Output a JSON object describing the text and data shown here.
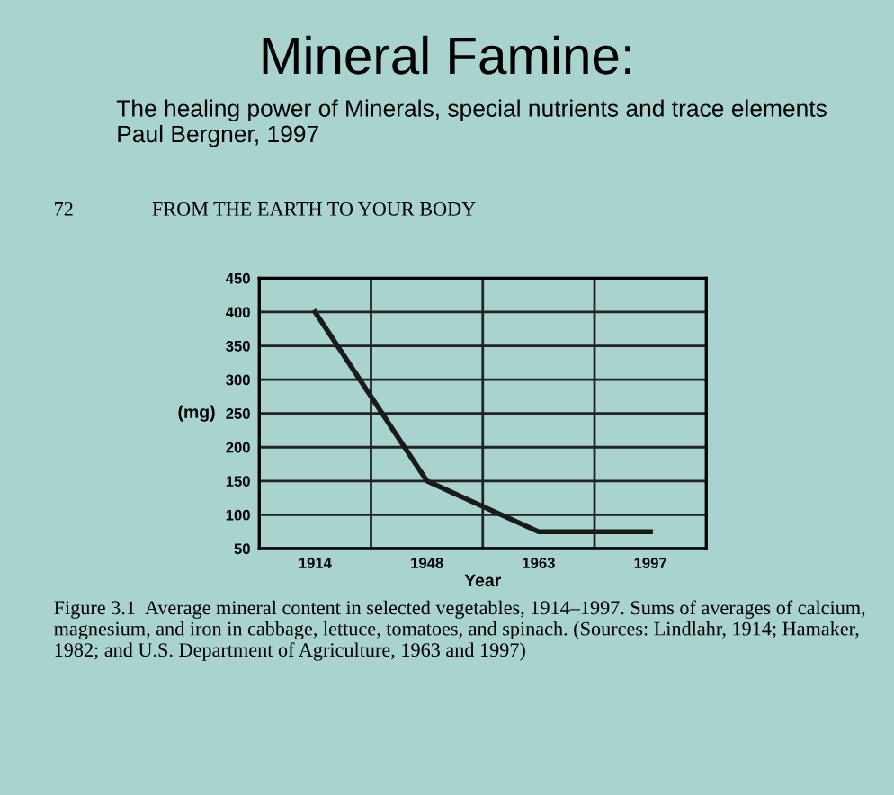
{
  "chart_data": {
    "type": "line",
    "title": "Mineral Famine:",
    "subtitle": "The healing power of Minerals, special nutrients and trace elements\nPaul Bergner, 1997",
    "annotations": [
      "72",
      "FROM THE EARTH TO YOUR BODY",
      "Figure 3.1  Average mineral content in selected vegetables, 1914–1997. Sums of averages of calcium, magnesium, and iron in cabbage, lettuce, tomatoes, and spinach. (Sources: Lindlahr, 1914; Hamaker, 1982; and U.S. Department of Agriculture, 1963 and 1997)"
    ],
    "xlabel": "Year",
    "ylabel": "(mg)",
    "categories": [
      "1914",
      "1948",
      "1963",
      "1997"
    ],
    "series": [
      {
        "color": "#1a1a1a",
        "values": [
          400,
          150,
          75,
          75
        ]
      }
    ],
    "ylim": [
      50,
      450
    ],
    "yticks": [
      50,
      100,
      150,
      200,
      250,
      300,
      350,
      400,
      450
    ],
    "grid": true,
    "marker": "none",
    "line_style": "solid"
  }
}
